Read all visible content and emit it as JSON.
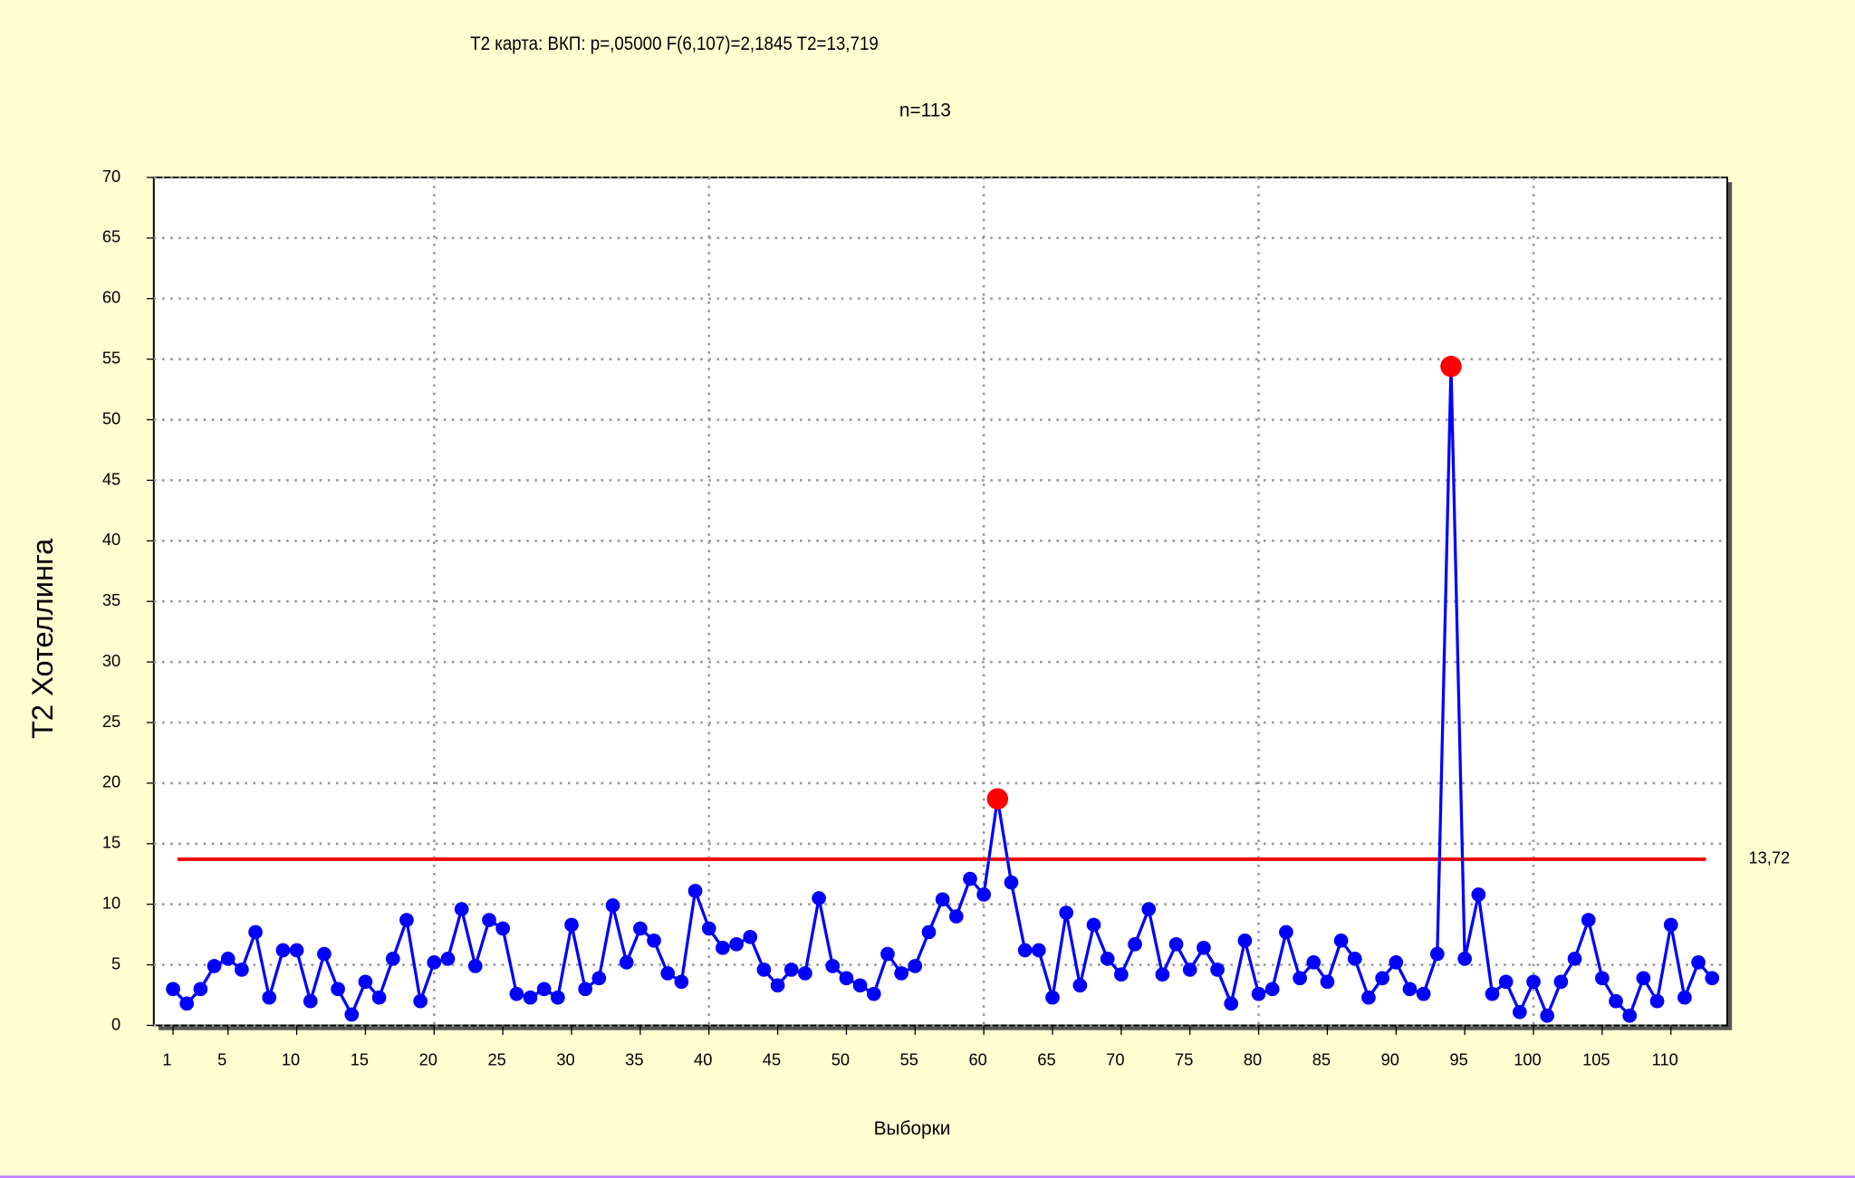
{
  "chart_data": {
    "type": "line",
    "title": "T2 карта: ВКП: p=,05000 F(6,107)=2,1845 T2=13,719",
    "subtitle": "n=113",
    "x_label": "Выборки",
    "y_label": "T2 Хотеллинга",
    "x": [
      1,
      2,
      3,
      4,
      5,
      6,
      7,
      8,
      9,
      10,
      11,
      12,
      13,
      14,
      15,
      16,
      17,
      18,
      19,
      20,
      21,
      22,
      23,
      24,
      25,
      26,
      27,
      28,
      29,
      30,
      31,
      32,
      33,
      34,
      35,
      36,
      37,
      38,
      39,
      40,
      41,
      42,
      43,
      44,
      45,
      46,
      47,
      48,
      49,
      50,
      51,
      52,
      53,
      54,
      55,
      56,
      57,
      58,
      59,
      60,
      61,
      62,
      63,
      64,
      65,
      66,
      67,
      68,
      69,
      70,
      71,
      72,
      73,
      74,
      75,
      76,
      77,
      78,
      79,
      80,
      81,
      82,
      83,
      84,
      85,
      86,
      87,
      88,
      89,
      90,
      91,
      92,
      93,
      94,
      95,
      96,
      97,
      98,
      99,
      100,
      101,
      102,
      103,
      104,
      105,
      106,
      107,
      108,
      109,
      110,
      111,
      112,
      113
    ],
    "series": [
      {
        "color": "#0000ff",
        "values": [
          3.0,
          1.8,
          3.0,
          4.9,
          5.5,
          4.6,
          7.7,
          2.3,
          6.2,
          6.2,
          2.0,
          5.9,
          3.0,
          0.9,
          3.6,
          2.3,
          5.5,
          8.7,
          2.0,
          5.2,
          5.5,
          9.6,
          4.9,
          8.7,
          8.0,
          2.6,
          2.3,
          3.0,
          2.3,
          8.3,
          3.0,
          3.9,
          9.9,
          5.2,
          8.0,
          7.0,
          4.3,
          3.6,
          11.1,
          8.0,
          6.4,
          6.7,
          7.3,
          4.6,
          3.3,
          4.6,
          4.3,
          10.5,
          4.9,
          3.9,
          3.3,
          2.6,
          5.9,
          4.3,
          4.9,
          7.7,
          10.4,
          9.0,
          12.1,
          10.8,
          18.7,
          11.8,
          6.2,
          6.2,
          2.3,
          9.3,
          3.3,
          8.3,
          5.5,
          4.2,
          6.7,
          9.6,
          4.2,
          6.7,
          4.6,
          6.4,
          4.6,
          1.8,
          7.0,
          2.6,
          3.0,
          7.7,
          3.9,
          5.2,
          3.6,
          7.0,
          5.5,
          2.3,
          3.9,
          5.2,
          3.0,
          2.6,
          5.9,
          54.4,
          5.5,
          10.8,
          2.6,
          3.6,
          1.1,
          3.6,
          0.8,
          3.6,
          5.5,
          8.7,
          3.9,
          2.0,
          0.8,
          3.9,
          2.0,
          8.3,
          2.3,
          5.2,
          3.9
        ]
      }
    ],
    "control_limit": {
      "value": 13.72,
      "label": "13,72"
    },
    "control_limit_color": "#ff0000",
    "out_of_control_color": "#ff0000",
    "xlim": [
      -0.4,
      114.1
    ],
    "xticks": [
      1,
      5,
      10,
      15,
      20,
      25,
      30,
      35,
      40,
      45,
      50,
      55,
      60,
      65,
      70,
      75,
      80,
      85,
      90,
      95,
      100,
      105,
      110
    ],
    "x_grid": [
      20,
      40,
      60,
      80,
      100
    ],
    "ylim": [
      0,
      70
    ],
    "yticks": [
      0,
      5,
      10,
      15,
      20,
      25,
      30,
      35,
      40,
      45,
      50,
      55,
      60,
      65,
      70
    ],
    "grid": true
  }
}
